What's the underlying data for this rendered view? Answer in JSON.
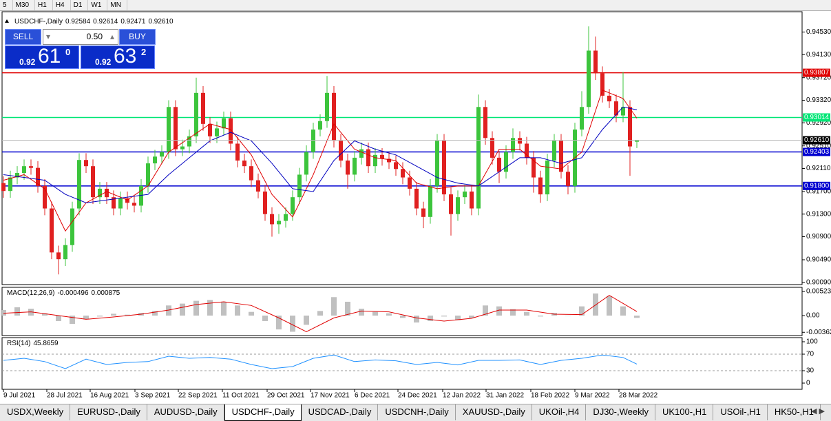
{
  "toolbar": [
    "5",
    "M30",
    "H1",
    "H4",
    "D1",
    "W1",
    "MN"
  ],
  "trade_panel": {
    "sell": "SELL",
    "lot": "0.50",
    "buy": "BUY",
    "bid": {
      "prefix": "0.92",
      "big": "61",
      "pip": "0"
    },
    "ask": {
      "prefix": "0.92",
      "big": "63",
      "pip": "2"
    }
  },
  "tabs": [
    "USDX,Weekly",
    "EURUSD-,Daily",
    "AUDUSD-,Daily",
    "USDCHF-,Daily",
    "USDCAD-,Daily",
    "USDCNH-,Daily",
    "XAUUSD-,Daily",
    "UKOil-,H4",
    "DJ30-,Weekly",
    "UK100-,H1",
    "USOil-,H1",
    "HK50-,H1"
  ],
  "active_tab": 3,
  "chart_data": [
    {
      "type": "candlestick",
      "title": "USDCHF-,Daily",
      "open": [
        0.9185,
        0.9171,
        0.9195,
        0.9203,
        0.9215,
        0.9212,
        0.918,
        0.914,
        0.9062,
        0.905,
        0.9075,
        0.914,
        0.9226,
        0.9215,
        0.916,
        0.9175,
        0.916,
        0.914,
        0.9158,
        0.915,
        0.9145,
        0.918,
        0.922,
        0.9232,
        0.924,
        0.932,
        0.9245,
        0.925,
        0.9268,
        0.9345,
        0.929,
        0.9268,
        0.9282,
        0.93,
        0.9255,
        0.9225,
        0.9215,
        0.919,
        0.917,
        0.913,
        0.9112,
        0.9118,
        0.913,
        0.916,
        0.92,
        0.924,
        0.928,
        0.9295,
        0.9345,
        0.926,
        0.9225,
        0.92,
        0.923,
        0.9245,
        0.9215,
        0.9235,
        0.9228,
        0.9222,
        0.921,
        0.9195,
        0.9175,
        0.914,
        0.9125,
        0.918,
        0.926,
        0.9165,
        0.913,
        0.916,
        0.917,
        0.914,
        0.932,
        0.9265,
        0.923,
        0.9205,
        0.924,
        0.9265,
        0.9255,
        0.923,
        0.9195,
        0.9165,
        0.9225,
        0.926,
        0.9205,
        0.918,
        0.928,
        0.932,
        0.942,
        0.938,
        0.934,
        0.933,
        0.9305,
        0.932,
        0.92584
      ],
      "high": [
        0.9197,
        0.9207,
        0.9215,
        0.9227,
        0.9227,
        0.9224,
        0.9192,
        0.9152,
        0.9074,
        0.9087,
        0.9152,
        0.9238,
        0.9238,
        0.9227,
        0.9187,
        0.9187,
        0.9172,
        0.917,
        0.917,
        0.9162,
        0.9192,
        0.9232,
        0.9244,
        0.9252,
        0.9332,
        0.9332,
        0.9262,
        0.928,
        0.9372,
        0.9357,
        0.9302,
        0.9294,
        0.9312,
        0.9312,
        0.9267,
        0.9237,
        0.9227,
        0.9202,
        0.9182,
        0.9142,
        0.913,
        0.9142,
        0.9172,
        0.9212,
        0.9252,
        0.9292,
        0.9307,
        0.9375,
        0.9357,
        0.9272,
        0.9237,
        0.9242,
        0.9257,
        0.9257,
        0.9247,
        0.9247,
        0.924,
        0.9234,
        0.9222,
        0.9207,
        0.9187,
        0.9152,
        0.9192,
        0.9272,
        0.9272,
        0.9177,
        0.9172,
        0.9182,
        0.9182,
        0.9342,
        0.9332,
        0.9277,
        0.9242,
        0.9252,
        0.9282,
        0.9277,
        0.9267,
        0.9242,
        0.9207,
        0.9237,
        0.9272,
        0.9272,
        0.9217,
        0.9292,
        0.9348,
        0.9463,
        0.9445,
        0.9392,
        0.9352,
        0.9342,
        0.9382,
        0.9332,
        0.92614
      ],
      "low": [
        0.9159,
        0.9159,
        0.9183,
        0.9191,
        0.92,
        0.9168,
        0.9128,
        0.905,
        0.9023,
        0.9038,
        0.9063,
        0.9128,
        0.9203,
        0.9148,
        0.9148,
        0.9148,
        0.9128,
        0.9128,
        0.9138,
        0.9133,
        0.9133,
        0.9168,
        0.9208,
        0.922,
        0.9228,
        0.9233,
        0.9233,
        0.9238,
        0.9256,
        0.9278,
        0.9256,
        0.9256,
        0.927,
        0.9243,
        0.9213,
        0.9203,
        0.9178,
        0.9158,
        0.9118,
        0.909,
        0.9095,
        0.9106,
        0.9118,
        0.9148,
        0.9188,
        0.9228,
        0.9268,
        0.9283,
        0.9248,
        0.9213,
        0.9175,
        0.9188,
        0.9218,
        0.9203,
        0.9203,
        0.9216,
        0.921,
        0.9198,
        0.9183,
        0.9163,
        0.9128,
        0.9105,
        0.9113,
        0.9168,
        0.9153,
        0.9092,
        0.9118,
        0.9148,
        0.9128,
        0.9128,
        0.9253,
        0.9218,
        0.9185,
        0.9193,
        0.9228,
        0.9243,
        0.9218,
        0.9168,
        0.915,
        0.9153,
        0.9213,
        0.9193,
        0.9165,
        0.9168,
        0.9268,
        0.9308,
        0.9368,
        0.9328,
        0.9318,
        0.9293,
        0.9293,
        0.9198,
        0.92471
      ],
      "close": [
        0.9171,
        0.9195,
        0.9203,
        0.9215,
        0.9212,
        0.918,
        0.914,
        0.9062,
        0.905,
        0.9075,
        0.914,
        0.9226,
        0.9215,
        0.916,
        0.9175,
        0.916,
        0.914,
        0.9158,
        0.915,
        0.9145,
        0.918,
        0.922,
        0.9232,
        0.924,
        0.932,
        0.9245,
        0.925,
        0.9268,
        0.9345,
        0.929,
        0.9268,
        0.9282,
        0.93,
        0.9255,
        0.9225,
        0.9215,
        0.919,
        0.917,
        0.913,
        0.9112,
        0.9118,
        0.913,
        0.916,
        0.92,
        0.924,
        0.928,
        0.9295,
        0.9345,
        0.926,
        0.9225,
        0.92,
        0.923,
        0.9245,
        0.9215,
        0.9235,
        0.9228,
        0.9222,
        0.921,
        0.9195,
        0.9175,
        0.914,
        0.9125,
        0.918,
        0.926,
        0.9165,
        0.913,
        0.916,
        0.917,
        0.914,
        0.932,
        0.9265,
        0.923,
        0.9205,
        0.924,
        0.9265,
        0.9255,
        0.923,
        0.9195,
        0.9165,
        0.9225,
        0.926,
        0.9205,
        0.918,
        0.928,
        0.932,
        0.942,
        0.938,
        0.934,
        0.933,
        0.9305,
        0.932,
        0.925,
        0.9261
      ],
      "up_color": "#3cc43c",
      "down_color": "#e02020",
      "series": [
        {
          "color": "#e00000",
          "x": [
            0,
            3,
            6,
            9,
            12,
            15,
            18,
            21,
            24,
            27,
            30,
            33,
            36,
            39,
            42,
            45,
            48,
            51,
            54,
            57,
            60,
            63,
            66,
            69,
            72,
            75,
            78,
            81,
            84,
            87,
            90,
            92
          ],
          "values": [
            0.919,
            0.92,
            0.9175,
            0.91,
            0.915,
            0.917,
            0.9155,
            0.918,
            0.924,
            0.9265,
            0.929,
            0.928,
            0.9235,
            0.9165,
            0.9125,
            0.92,
            0.929,
            0.9245,
            0.923,
            0.9225,
            0.9185,
            0.9175,
            0.918,
            0.918,
            0.9245,
            0.9245,
            0.9215,
            0.921,
            0.924,
            0.935,
            0.9335,
            0.93
          ]
        },
        {
          "color": "#0000c0",
          "x": [
            0,
            3,
            6,
            9,
            12,
            15,
            18,
            21,
            24,
            27,
            30,
            33,
            36,
            39,
            42,
            45,
            48,
            51,
            54,
            57,
            60,
            63,
            66,
            69,
            72,
            75,
            78,
            81,
            84,
            87,
            90,
            92
          ],
          "values": [
            0.92,
            0.9195,
            0.919,
            0.9165,
            0.915,
            0.9155,
            0.916,
            0.9165,
            0.92,
            0.923,
            0.926,
            0.9275,
            0.926,
            0.922,
            0.9175,
            0.917,
            0.9225,
            0.926,
            0.9245,
            0.9235,
            0.9215,
            0.9195,
            0.9185,
            0.918,
            0.9205,
            0.923,
            0.923,
            0.922,
            0.923,
            0.928,
            0.932,
            0.9315
          ]
        }
      ],
      "xlim": [
        0,
        116
      ],
      "ylim": [
        0.9005,
        0.9489
      ],
      "yticks": [
        {
          "value": 0.9453,
          "label": "0.94530"
        },
        {
          "value": 0.9413,
          "label": "0.94130"
        },
        {
          "value": 0.9372,
          "label": "0.93720"
        },
        {
          "value": 0.9332,
          "label": "0.93320"
        },
        {
          "value": 0.9292,
          "label": "0.92920"
        },
        {
          "value": 0.9251,
          "label": "0.92510"
        },
        {
          "value": 0.9211,
          "label": "0.92110"
        },
        {
          "value": 0.917,
          "label": "0.91700"
        },
        {
          "value": 0.913,
          "label": "0.91300"
        },
        {
          "value": 0.909,
          "label": "0.90900"
        },
        {
          "value": 0.9049,
          "label": "0.90490"
        },
        {
          "value": 0.9009,
          "label": "0.90090"
        }
      ],
      "xticks": [
        {
          "value": 0,
          "label": "9 Jul 2021"
        },
        {
          "value": 6.3,
          "label": "28 Jul 2021"
        },
        {
          "value": 12.6,
          "label": "16 Aug 2021"
        },
        {
          "value": 19.1,
          "label": "3 Sep 2021"
        },
        {
          "value": 25.4,
          "label": "22 Sep 2021"
        },
        {
          "value": 31.8,
          "label": "11 Oct 2021"
        },
        {
          "value": 38.3,
          "label": "29 Oct 2021"
        },
        {
          "value": 44.6,
          "label": "17 Nov 2021"
        },
        {
          "value": 51,
          "label": "6 Dec 2021"
        },
        {
          "value": 57.3,
          "label": "24 Dec 2021"
        },
        {
          "value": 63.8,
          "label": "12 Jan 2022"
        },
        {
          "value": 70.1,
          "label": "31 Jan 2022"
        },
        {
          "value": 76.6,
          "label": "18 Feb 2022"
        },
        {
          "value": 83,
          "label": "9 Mar 2022"
        },
        {
          "value": 89.4,
          "label": "28 Mar 2022"
        }
      ],
      "levels": [
        {
          "value": 0.93807,
          "color": "#e00000"
        },
        {
          "value": 0.93014,
          "color": "#00e676"
        },
        {
          "value": 0.92403,
          "color": "#0000d0"
        },
        {
          "value": 0.918,
          "label": "0.91800",
          "color": "#0000d0"
        }
      ],
      "last_price": {
        "value": 0.9261,
        "label": "0.92610"
      }
    },
    {
      "type": "bar",
      "title": "MACD(12,26,9)",
      "x": [
        0,
        2,
        4,
        6,
        8,
        10,
        12,
        14,
        16,
        18,
        20,
        22,
        24,
        26,
        28,
        30,
        32,
        34,
        36,
        38,
        40,
        42,
        44,
        46,
        48,
        50,
        52,
        54,
        56,
        58,
        60,
        62,
        64,
        66,
        68,
        70,
        72,
        74,
        76,
        78,
        80,
        82,
        84,
        86,
        88,
        90,
        92
      ],
      "values": [
        0.0012,
        0.0018,
        0.0015,
        0.0005,
        -0.0012,
        -0.0018,
        -0.0008,
        -0.0002,
        0.0004,
        0.0002,
        0.0006,
        0.001,
        0.0022,
        0.0026,
        0.0032,
        0.0034,
        0.003,
        0.0022,
        0.0008,
        -0.0012,
        -0.003,
        -0.0035,
        -0.002,
        0.001,
        0.004,
        0.003,
        0.0015,
        0.0008,
        0.0005,
        -0.0005,
        -0.0015,
        -0.0012,
        -0.0002,
        -0.001,
        -0.0005,
        0.0022,
        0.002,
        0.0014,
        0.0008,
        -0.0002,
        0.0006,
        0,
        0.002,
        0.0048,
        0.0042,
        0.002,
        -0.000496
      ],
      "color": "#c0c0c0",
      "signal": {
        "color": "#e00000",
        "x": [
          0,
          4,
          8,
          12,
          16,
          20,
          24,
          28,
          32,
          36,
          40,
          44,
          48,
          52,
          56,
          60,
          64,
          68,
          72,
          76,
          80,
          84,
          88,
          92
        ],
        "values": [
          0.0005,
          0.0008,
          0,
          -0.0008,
          -0.0003,
          0.0003,
          0.0012,
          0.0024,
          0.003,
          0.0022,
          -0.0005,
          -0.0035,
          -0.0005,
          0.001,
          0.0008,
          -0.0005,
          -0.0012,
          -0.0006,
          0.0012,
          0.0012,
          0.0003,
          0.0002,
          0.0044,
          0.000875
        ]
      },
      "xlim": [
        0,
        116
      ],
      "ylim": [
        -0.00433,
        0.00613
      ],
      "yticks": [
        0.00523,
        {
          "value": 0,
          "label": "0.00"
        },
        -0.00362
      ]
    },
    {
      "type": "line",
      "title": "RSI(14)",
      "x": [
        0,
        3,
        6,
        9,
        12,
        15,
        18,
        21,
        24,
        27,
        30,
        33,
        36,
        39,
        42,
        45,
        48,
        51,
        54,
        57,
        60,
        63,
        66,
        69,
        72,
        75,
        78,
        81,
        84,
        87,
        90,
        92
      ],
      "values": [
        55,
        60,
        52,
        35,
        58,
        45,
        50,
        52,
        65,
        60,
        62,
        58,
        45,
        35,
        40,
        60,
        68,
        52,
        56,
        54,
        45,
        50,
        44,
        55,
        55,
        56,
        45,
        55,
        60,
        68,
        62,
        45.8659
      ],
      "color": "#1e90ff",
      "xlim": [
        0,
        116
      ],
      "ylim": [
        -15,
        110
      ],
      "yticks": [
        100,
        70,
        30,
        0
      ],
      "levels": [
        70,
        30
      ]
    }
  ]
}
